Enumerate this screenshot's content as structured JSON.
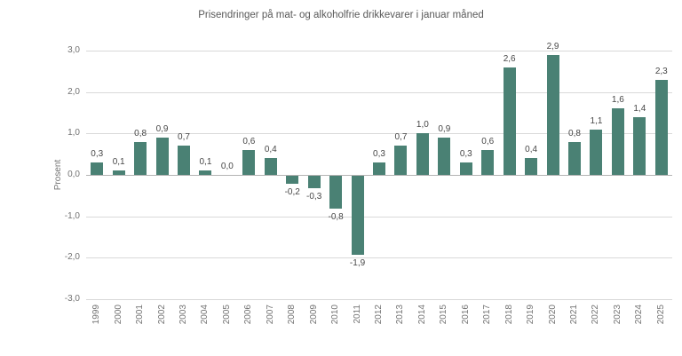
{
  "chart_data": {
    "type": "bar",
    "title": "Prisendringer på mat- og alkoholfrie drikkevarer i januar måned",
    "ylabel": "Prosent",
    "xlabel": "",
    "categories": [
      "1999",
      "2000",
      "2001",
      "2002",
      "2003",
      "2004",
      "2005",
      "2006",
      "2007",
      "2008",
      "2009",
      "2010",
      "2011",
      "2012",
      "2013",
      "2014",
      "2015",
      "2016",
      "2017",
      "2018",
      "2019",
      "2020",
      "2021",
      "2022",
      "2023",
      "2024",
      "2025"
    ],
    "values": [
      0.3,
      0.1,
      0.8,
      0.9,
      0.7,
      0.1,
      0.0,
      0.6,
      0.4,
      -0.2,
      -0.3,
      -0.8,
      -1.9,
      0.3,
      0.7,
      1.0,
      0.9,
      0.3,
      0.6,
      2.6,
      0.4,
      2.9,
      0.8,
      1.1,
      1.6,
      1.4,
      2.3
    ],
    "value_labels": [
      "0,3",
      "0,1",
      "0,8",
      "0,9",
      "0,7",
      "0,1",
      "0,0",
      "0,6",
      "0,4",
      "-0,2",
      "-0,3",
      "-0,8",
      "-1,9",
      "0,3",
      "0,7",
      "1,0",
      "0,9",
      "0,3",
      "0,6",
      "2,6",
      "0,4",
      "2,9",
      "0,8",
      "1,1",
      "1,6",
      "1,4",
      "2,3"
    ],
    "ylim": [
      -3,
      3
    ],
    "ytick_values": [
      3,
      2,
      1,
      0,
      -1,
      -2,
      -3
    ],
    "ytick_labels": [
      "3,0",
      "2,0",
      "1,0",
      "0,0",
      "-1,0",
      "-2,0",
      "-3,0"
    ],
    "grid": true,
    "legend_position": "none",
    "bar_color": "#4a8174",
    "grid_color": "#d9d9d9",
    "zero_line_color": "#b3b3b3",
    "text_color": "#595959"
  }
}
